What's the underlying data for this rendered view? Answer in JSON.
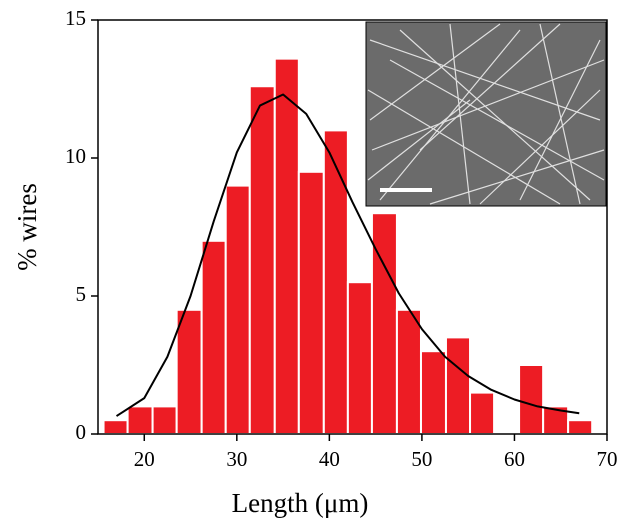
{
  "chart_data": {
    "type": "histogram",
    "x_label": "Length (μm)",
    "y_label": "% wires",
    "bins": [
      15.6,
      18.2,
      20.9,
      23.5,
      26.2,
      28.8,
      31.4,
      34.1,
      36.7,
      39.4,
      42.0,
      44.6,
      47.3,
      49.9,
      52.6,
      55.2,
      57.8,
      60.5,
      63.1,
      65.8,
      68.4
    ],
    "values": [
      0.5,
      1,
      1,
      4.5,
      7,
      9,
      12.6,
      13.6,
      9.5,
      11,
      5.5,
      8,
      4.5,
      3,
      3.5,
      1.5,
      0,
      2.5,
      1,
      0.5
    ],
    "color": "#ed1c24",
    "fit": {
      "color": "#000000",
      "x": [
        17,
        20,
        22.5,
        25,
        27.5,
        30,
        32.5,
        35,
        37.5,
        40,
        42.5,
        45,
        47.5,
        50,
        52.5,
        55,
        57.5,
        60,
        62.5,
        65,
        67
      ],
      "values": [
        0.65,
        1.3,
        2.8,
        5.0,
        7.7,
        10.2,
        11.9,
        12.3,
        11.6,
        10.2,
        8.4,
        6.7,
        5.1,
        3.8,
        2.8,
        2.1,
        1.6,
        1.25,
        1.0,
        0.85,
        0.75
      ]
    },
    "xlim": [
      15,
      70
    ],
    "xticks": [
      20,
      30,
      40,
      50,
      60,
      70
    ],
    "ylim": [
      0,
      15
    ],
    "yticks": [
      0,
      5,
      10,
      15
    ]
  }
}
